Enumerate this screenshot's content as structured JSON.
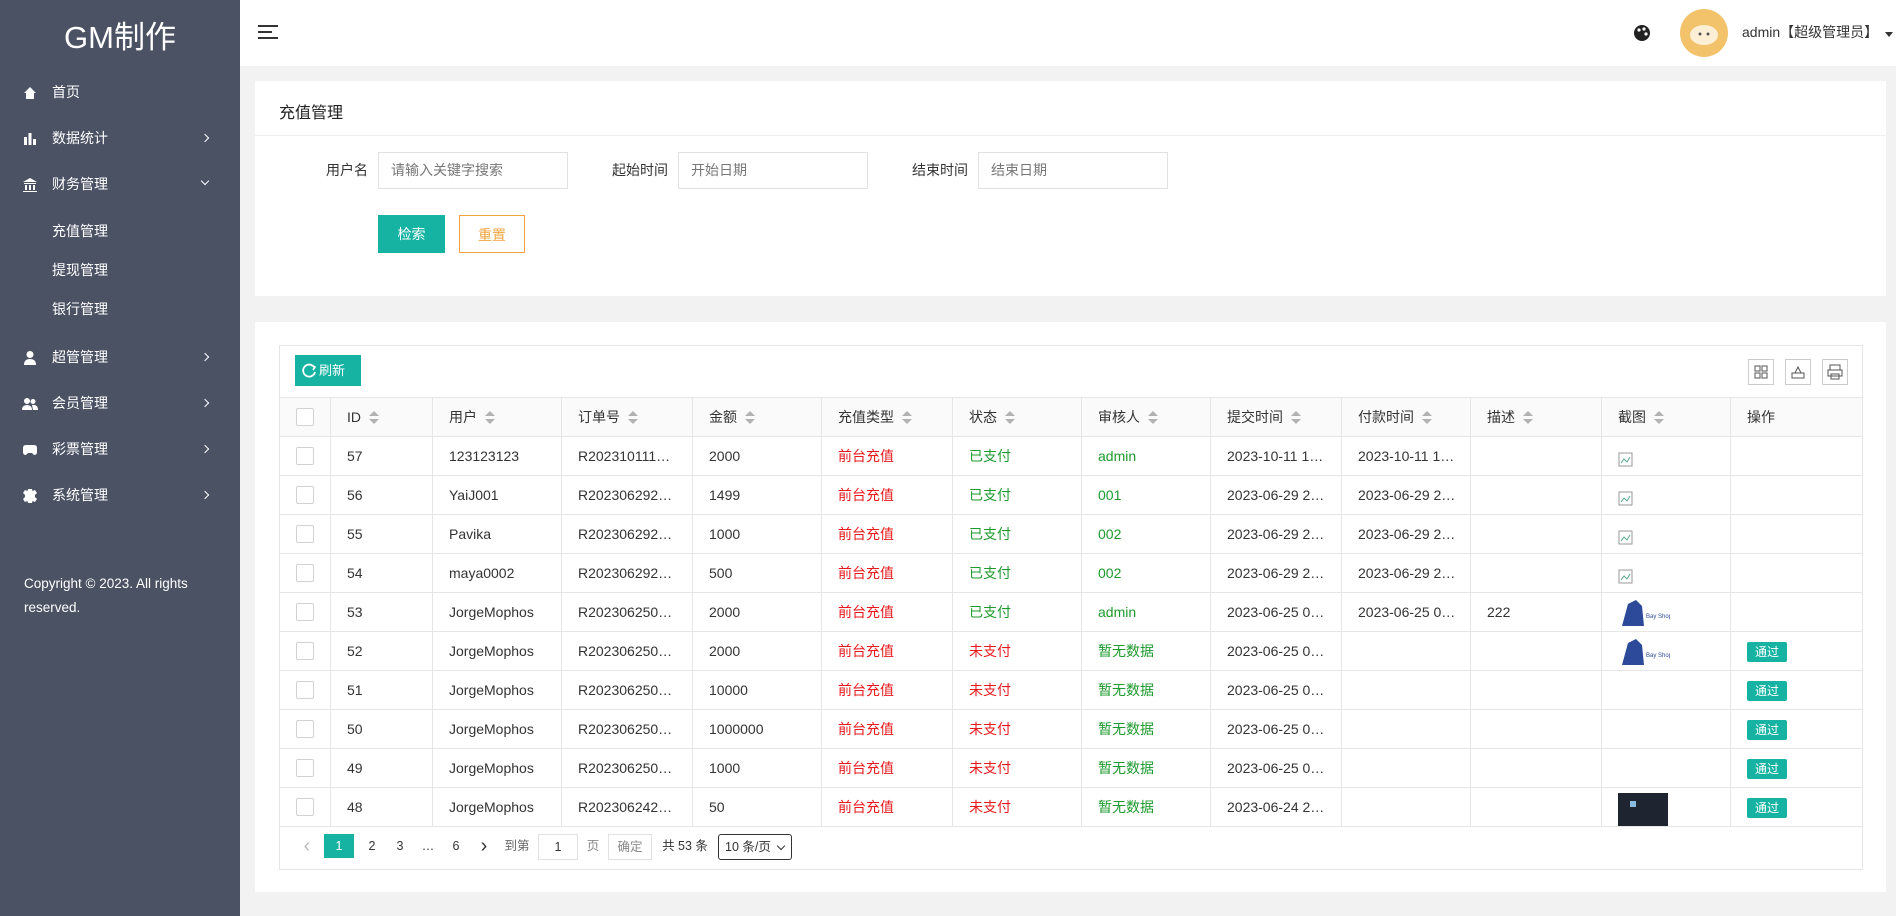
{
  "sidebar": {
    "brand": "GM制作",
    "menu": [
      {
        "label": "首页"
      },
      {
        "label": "数据统计",
        "arrow": "right"
      },
      {
        "label": "财务管理",
        "arrow": "down",
        "children": [
          "充值管理",
          "提现管理",
          "银行管理"
        ]
      },
      {
        "label": "超管管理",
        "arrow": "right"
      },
      {
        "label": "会员管理",
        "arrow": "right"
      },
      {
        "label": "彩票管理",
        "arrow": "right"
      },
      {
        "label": "系统管理",
        "arrow": "right"
      }
    ],
    "copyright": "Copyright © 2023. All rights reserved."
  },
  "header": {
    "user": "admin【超级管理员】"
  },
  "search_panel": {
    "title": "充值管理",
    "fields": [
      {
        "label": "用户名",
        "placeholder": "请输入关键字搜索"
      },
      {
        "label": "起始时间",
        "placeholder": "开始日期"
      },
      {
        "label": "结束时间",
        "placeholder": "结束日期"
      }
    ],
    "buttons": [
      "检索",
      "重置"
    ]
  },
  "table": {
    "toolbar_button": "刷新",
    "columns": [
      "ID",
      "用户",
      "订单号",
      "金额",
      "充值类型",
      "状态",
      "审核人",
      "提交时间",
      "付款时间",
      "描述",
      "截图",
      "操作"
    ],
    "rows": [
      {
        "cells": [
          57,
          "123123123",
          "R202310111…",
          2000,
          "前台充值",
          "已支付",
          "admin",
          "2023-10-11 1…",
          "2023-10-11 1…",
          null,
          null,
          null
        ],
        "status_color": "#1e9a2e"
      },
      {
        "cells": [
          56,
          "YaiJ001",
          "R202306292…",
          1499,
          "前台充值",
          "已支付",
          "001",
          "2023-06-29 2…",
          "2023-06-29 2…",
          null,
          null,
          null
        ],
        "status_color": "#1e9a2e"
      },
      {
        "cells": [
          55,
          "Pavika",
          "R202306292…",
          1000,
          "前台充值",
          "已支付",
          "002",
          "2023-06-29 2…",
          "2023-06-29 2…",
          null,
          null,
          null
        ],
        "status_color": "#1e9a2e"
      },
      {
        "cells": [
          54,
          "maya0002",
          "R202306292…",
          500,
          "前台充值",
          "已支付",
          "002",
          "2023-06-29 2…",
          "2023-06-29 2…",
          null,
          null,
          null
        ],
        "status_color": "#1e9a2e"
      },
      {
        "cells": [
          53,
          "JorgeMophos",
          "R202306250…",
          2000,
          "前台充值",
          "已支付",
          "admin",
          "2023-06-25 0…",
          "2023-06-25 0…",
          222,
          null,
          null
        ],
        "status_color": "#1e9a2e"
      },
      {
        "cells": [
          52,
          "JorgeMophos",
          "R202306250…",
          2000,
          "前台充值",
          "未支付",
          "暂无数据",
          "2023-06-25 0…",
          null,
          null,
          null,
          "通过"
        ],
        "status_color": "#e8191c"
      },
      {
        "cells": [
          51,
          "JorgeMophos",
          "R202306250…",
          10000,
          "前台充值",
          "未支付",
          "暂无数据",
          "2023-06-25 0…",
          null,
          null,
          null,
          "通过"
        ],
        "status_color": "#e8191c"
      },
      {
        "cells": [
          50,
          "JorgeMophos",
          "R202306250…",
          1000000,
          "前台充值",
          "未支付",
          "暂无数据",
          "2023-06-25 0…",
          null,
          null,
          null,
          "通过"
        ],
        "status_color": "#e8191c"
      },
      {
        "cells": [
          49,
          "JorgeMophos",
          "R202306250…",
          1000,
          "前台充值",
          "未支付",
          "暂无数据",
          "2023-06-25 0…",
          null,
          null,
          null,
          "通过"
        ],
        "status_color": "#e8191c"
      },
      {
        "cells": [
          48,
          "JorgeMophos",
          "R202306242…",
          50,
          "前台充值",
          "未支付",
          "暂无数据",
          "2023-06-24 2…",
          null,
          null,
          null,
          "通过"
        ],
        "status_color": "#e8191c"
      }
    ]
  },
  "pagination": {
    "pages": [
      "1",
      "2",
      "3",
      "…",
      "6"
    ],
    "goto_label": "到第",
    "goto_value": "1",
    "page_label": "页",
    "confirm": "确定",
    "total": "共 53 条",
    "page_size": "10 条/页"
  }
}
